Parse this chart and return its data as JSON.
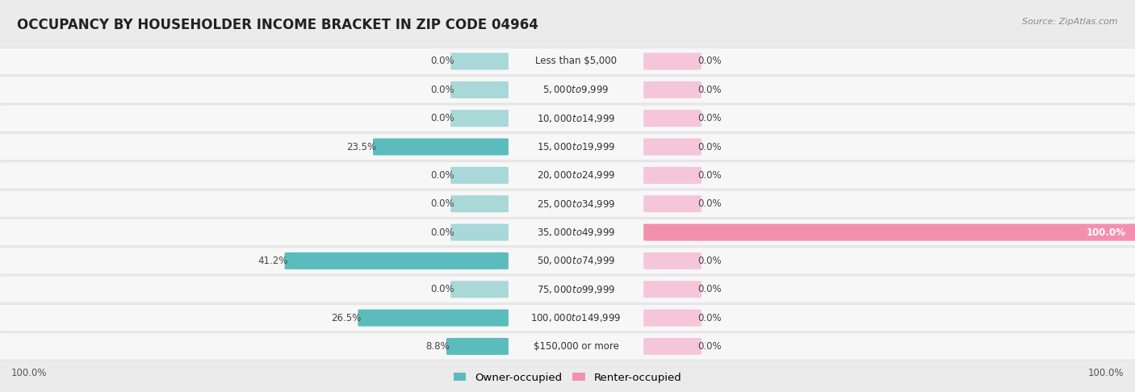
{
  "title": "OCCUPANCY BY HOUSEHOLDER INCOME BRACKET IN ZIP CODE 04964",
  "source": "Source: ZipAtlas.com",
  "categories": [
    "Less than $5,000",
    "$5,000 to $9,999",
    "$10,000 to $14,999",
    "$15,000 to $19,999",
    "$20,000 to $24,999",
    "$25,000 to $34,999",
    "$35,000 to $49,999",
    "$50,000 to $74,999",
    "$75,000 to $99,999",
    "$100,000 to $149,999",
    "$150,000 or more"
  ],
  "owner_pct": [
    0.0,
    0.0,
    0.0,
    23.5,
    0.0,
    0.0,
    0.0,
    41.2,
    0.0,
    26.5,
    8.8
  ],
  "renter_pct": [
    0.0,
    0.0,
    0.0,
    0.0,
    0.0,
    0.0,
    100.0,
    0.0,
    0.0,
    0.0,
    0.0
  ],
  "owner_color": "#5bbcbd",
  "owner_color_light": "#a8d8d8",
  "renter_color": "#f390b0",
  "renter_color_light": "#f5c6d8",
  "bg_color": "#ebebeb",
  "row_bg_white": "#f7f7f7",
  "max_val": 100.0,
  "label_fontsize": 8.5,
  "title_fontsize": 12,
  "legend_fontsize": 9.5,
  "source_fontsize": 8
}
